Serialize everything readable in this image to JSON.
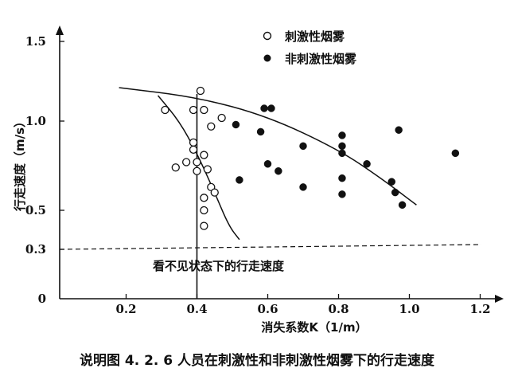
{
  "chart_data": {
    "type": "scatter",
    "title": "",
    "caption": "说明图 4. 2. 6   人员在刺激性和非刺激性烟雾下的行走速度",
    "xlabel": "消失系数K（1/m）",
    "ylabel": "行走速度（m/s）",
    "xlim": [
      0,
      1.3
    ],
    "ylim": [
      0,
      1.6
    ],
    "x_ticks": [
      "0.2",
      "0.4",
      "0.6",
      "0.8",
      "1.0",
      "1.2"
    ],
    "y_ticks": [
      "0",
      "0.3",
      "0.5",
      "1.0",
      "1.5"
    ],
    "x_tick_values": [
      0.2,
      0.4,
      0.6,
      0.8,
      1.0,
      1.2
    ],
    "y_tick_values": [
      0,
      0.3,
      0.5,
      1.0,
      1.5
    ],
    "series": [
      {
        "name": "刺激性烟雾",
        "marker": "open-circle",
        "points": [
          [
            0.31,
            1.07
          ],
          [
            0.39,
            1.07
          ],
          [
            0.42,
            1.07
          ],
          [
            0.41,
            1.19
          ],
          [
            0.44,
            0.97
          ],
          [
            0.47,
            1.02
          ],
          [
            0.34,
            0.74
          ],
          [
            0.37,
            0.77
          ],
          [
            0.39,
            0.88
          ],
          [
            0.39,
            0.84
          ],
          [
            0.4,
            0.77
          ],
          [
            0.4,
            0.72
          ],
          [
            0.42,
            0.81
          ],
          [
            0.43,
            0.73
          ],
          [
            0.44,
            0.63
          ],
          [
            0.45,
            0.6
          ],
          [
            0.42,
            0.57
          ],
          [
            0.42,
            0.5
          ],
          [
            0.42,
            0.42
          ]
        ]
      },
      {
        "name": "非刺激性烟雾",
        "marker": "filled-circle",
        "points": [
          [
            0.51,
            0.98
          ],
          [
            0.58,
            0.94
          ],
          [
            0.59,
            1.08
          ],
          [
            0.61,
            1.08
          ],
          [
            0.6,
            0.76
          ],
          [
            0.63,
            0.72
          ],
          [
            0.52,
            0.67
          ],
          [
            0.7,
            0.63
          ],
          [
            0.7,
            0.86
          ],
          [
            0.81,
            0.92
          ],
          [
            0.81,
            0.86
          ],
          [
            0.81,
            0.82
          ],
          [
            0.81,
            0.68
          ],
          [
            0.81,
            0.59
          ],
          [
            0.88,
            0.76
          ],
          [
            0.95,
            0.66
          ],
          [
            0.96,
            0.6
          ],
          [
            0.97,
            0.95
          ],
          [
            0.98,
            0.53
          ],
          [
            1.13,
            0.82
          ]
        ]
      }
    ],
    "curves": [
      {
        "name": "irritant-trend",
        "points": [
          [
            0.29,
            1.16
          ],
          [
            0.35,
            1.0
          ],
          [
            0.4,
            0.82
          ],
          [
            0.45,
            0.6
          ],
          [
            0.49,
            0.42
          ],
          [
            0.52,
            0.35
          ]
        ]
      },
      {
        "name": "non-irritant-trend",
        "points": [
          [
            0.18,
            1.21
          ],
          [
            0.4,
            1.15
          ],
          [
            0.6,
            1.03
          ],
          [
            0.8,
            0.84
          ],
          [
            0.92,
            0.68
          ],
          [
            1.02,
            0.53
          ]
        ]
      }
    ],
    "reference_line": {
      "axis": "y",
      "value": 0.3,
      "style": "dashed",
      "label": "看不见状态下的行走速度"
    },
    "vertical_line": {
      "axis": "x",
      "value": 0.4
    },
    "legend": {
      "placement": "top-center",
      "items": [
        {
          "label": "刺激性烟雾",
          "marker": "open-circle"
        },
        {
          "label": "非刺激性烟雾",
          "marker": "filled-circle"
        }
      ]
    },
    "grid": false
  }
}
